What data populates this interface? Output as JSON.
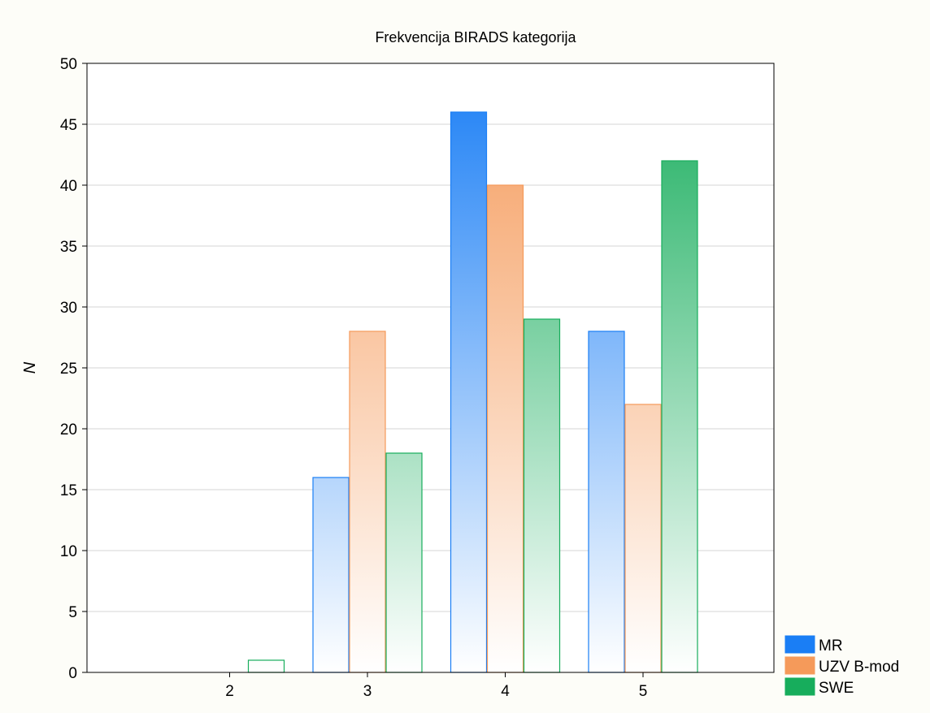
{
  "chart_data": {
    "type": "bar",
    "title": "Frekvencija BIRADS kategorija",
    "xlabel": "",
    "ylabel": "N",
    "categories": [
      "2",
      "3",
      "4",
      "5"
    ],
    "ylim": [
      0,
      50
    ],
    "yticks": [
      0,
      5,
      10,
      15,
      20,
      25,
      30,
      35,
      40,
      45,
      50
    ],
    "grid": true,
    "legend_position": "bottom-right, outside plot",
    "series": [
      {
        "name": "MR",
        "values": [
          0,
          16,
          46,
          28
        ],
        "color": "#1a7ef5"
      },
      {
        "name": "UZV B-mod",
        "values": [
          0,
          28,
          40,
          22
        ],
        "color": "#f59a5a"
      },
      {
        "name": "SWE",
        "values": [
          1,
          18,
          29,
          42
        ],
        "color": "#17ad5c"
      }
    ]
  }
}
